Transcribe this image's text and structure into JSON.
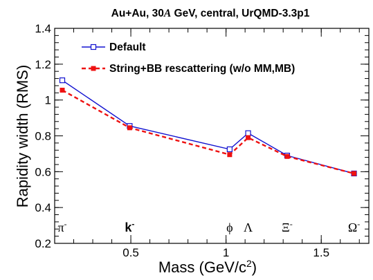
{
  "chart_data": {
    "type": "line",
    "title": "Au+Au, 30A GeV, central, UrQMD-3.3p1",
    "title_parts": [
      "Au+Au, 30",
      "A",
      " GeV, central, UrQMD-3.3p1"
    ],
    "xlabel": "Mass (GeV/c²)",
    "xlabel_parts": [
      "Mass (GeV/c",
      "2",
      ")"
    ],
    "ylabel": "Rapidity width (RMS)",
    "xlim": [
      0.1,
      1.75
    ],
    "ylim": [
      0.2,
      1.4
    ],
    "x_ticks": [
      0.5,
      1,
      1.5
    ],
    "x_tick_labels": [
      "0.5",
      "1",
      "1.5"
    ],
    "y_ticks": [
      0.2,
      0.4,
      0.6,
      0.8,
      1.0,
      1.2,
      1.4
    ],
    "y_tick_labels": [
      "0.2",
      "0.4",
      "0.6",
      "0.8",
      "1",
      "1.2",
      "1.4"
    ],
    "grid": false,
    "legend_position": "top-left",
    "particles": [
      {
        "label": "π",
        "sup": "-",
        "mass": 0.14,
        "bold": false
      },
      {
        "label": "k",
        "sup": "-",
        "mass": 0.494,
        "bold": true
      },
      {
        "label": "ϕ",
        "sup": "",
        "mass": 1.019,
        "bold": false
      },
      {
        "label": "Λ",
        "sup": "",
        "mass": 1.116,
        "bold": false
      },
      {
        "label": "Ξ",
        "sup": "-",
        "mass": 1.321,
        "bold": false
      },
      {
        "label": "Ω",
        "sup": "-",
        "mass": 1.672,
        "bold": false
      }
    ],
    "x": [
      0.14,
      0.494,
      1.019,
      1.116,
      1.321,
      1.672
    ],
    "series": [
      {
        "name": "Default",
        "color": "#1010d0",
        "style": "solid",
        "marker": "open-square",
        "values": [
          1.11,
          0.855,
          0.725,
          0.815,
          0.69,
          0.59
        ]
      },
      {
        "name": "String+BB rescattering (w/o MM,MB)",
        "color": "#ee1111",
        "style": "dashed",
        "marker": "filled-square",
        "values": [
          1.055,
          0.845,
          0.695,
          0.79,
          0.685,
          0.59
        ]
      }
    ]
  }
}
